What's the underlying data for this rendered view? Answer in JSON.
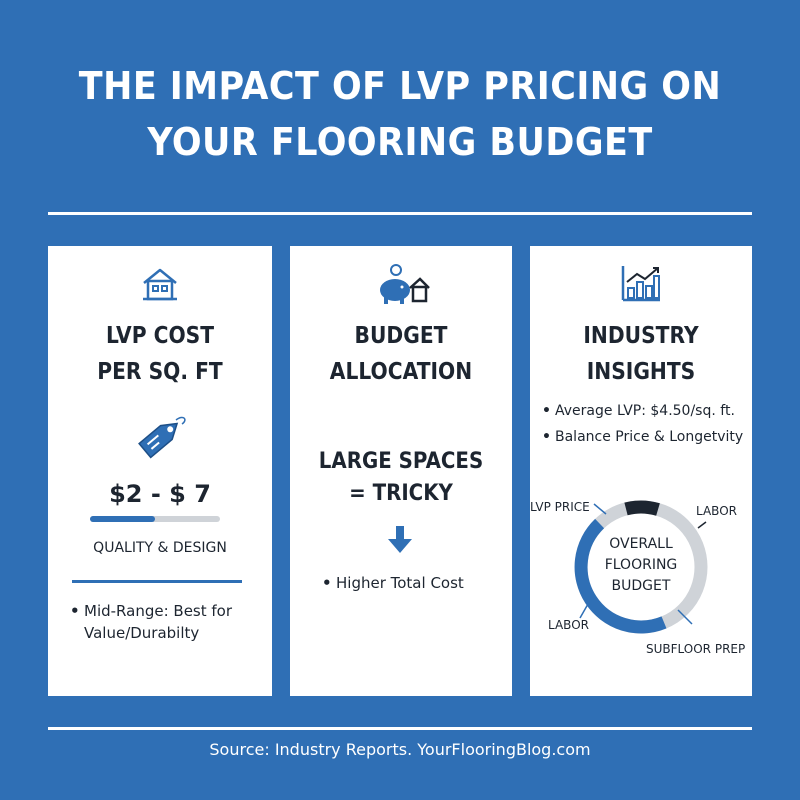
{
  "title": {
    "line1": "THE IMPACT OF LVP PRICING ON",
    "line2": "YOUR FLOORING BUDGET"
  },
  "colors": {
    "background": "#2f6fb5",
    "card": "#ffffff",
    "accent_blue": "#2f6fb5",
    "dark": "#1d2530",
    "light_gray": "#cfd3d8"
  },
  "card1": {
    "icon": "house-icon",
    "heading_line1": "LVP COST",
    "heading_line2": "PER SQ. FT",
    "tag_icon": "price-tag-icon",
    "price_range": "$2 - $ 7",
    "range_fill_fraction": 0.5,
    "range_label": "QUALITY & DESIGN",
    "bullet_line1": "Mid-Range: Best for",
    "bullet_line2": "Value/Durabilty"
  },
  "card2": {
    "icon": "piggy-bank-house-icon",
    "heading_line1": "BUDGET",
    "heading_line2": "ALLOCATION",
    "sub_line1": "LARGE SPACES",
    "sub_line2": "= TRICKY",
    "arrow_icon": "arrow-down-icon",
    "bullet": "Higher Total Cost"
  },
  "card3": {
    "icon": "bar-chart-growth-icon",
    "heading_line1": "INDUSTRY",
    "heading_line2": "INSIGHTS",
    "bullet1": "Average LVP: $4.50/sq. ft.",
    "bullet2": "Balance Price & Longetvity",
    "ring": {
      "center_line1": "OVERALL",
      "center_line2": "FLOORING",
      "center_line3": "BUDGET",
      "label_lvp_price": "LVP PRICE",
      "label_labor_top": "LABOR",
      "label_labor_bottom": "LABOR",
      "label_subfloor": "SUBFLOOR PREP"
    }
  },
  "source": "Source: Industry Reports. YourFlooringBlog.com"
}
